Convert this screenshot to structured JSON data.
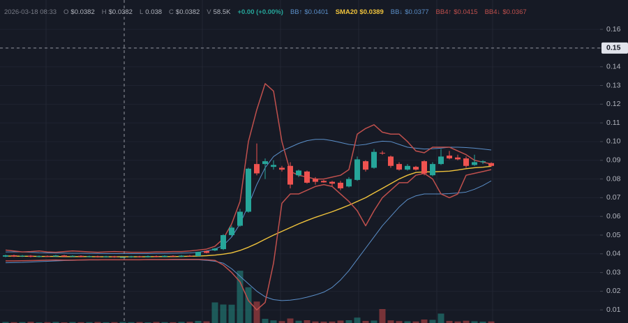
{
  "chart_data": {
    "type": "candlestick",
    "header": {
      "time": "2026-03-18 08:33",
      "ohlcv": [
        {
          "label": "O",
          "value": "$0.0382"
        },
        {
          "label": "H",
          "value": "$0.0382"
        },
        {
          "label": "L",
          "value": "0.038"
        },
        {
          "label": "C",
          "value": "$0.0382"
        },
        {
          "label": "V",
          "value": "58.5K"
        }
      ],
      "change": "+0.00 (+0.00%)"
    },
    "crosshair_price": 0.15,
    "ylim": [
      0.003,
      0.1757
    ],
    "yticks": [
      0.01,
      0.02,
      0.03,
      0.04,
      0.05,
      0.06,
      0.07,
      0.08,
      0.09,
      {
        "value": 0.1,
        "label": "0.10"
      },
      0.11,
      0.12,
      0.13,
      0.14,
      0.15,
      0.16
    ],
    "grid": true,
    "up_color": "#26a69a",
    "down_color": "#ef5350",
    "candles": {
      "open": [
        0.0385,
        0.0392,
        0.0386,
        0.039,
        0.0384,
        0.0388,
        0.0386,
        0.0391,
        0.0385,
        0.0389,
        0.0384,
        0.0387,
        0.0383,
        0.0386,
        0.0382,
        0.0382,
        0.0386,
        0.0383,
        0.0388,
        0.0384,
        0.0389,
        0.0385,
        0.039,
        0.0388,
        0.0415,
        0.0418,
        0.0425,
        0.05,
        0.055,
        0.0625,
        0.088,
        0.088,
        0.0865,
        0.086,
        0.087,
        0.082,
        0.084,
        0.08,
        0.079,
        0.0785,
        0.078,
        0.076,
        0.0795,
        0.0895,
        0.086,
        0.094,
        0.092,
        0.088,
        0.085,
        0.0865,
        0.0895,
        0.082,
        0.088,
        0.0925,
        0.0915,
        0.091,
        0.0875,
        0.089,
        0.0885
      ],
      "high": [
        0.0395,
        0.0395,
        0.0393,
        0.0393,
        0.0391,
        0.0391,
        0.0394,
        0.0394,
        0.0392,
        0.0392,
        0.039,
        0.039,
        0.0389,
        0.0389,
        0.0382,
        0.0389,
        0.0389,
        0.0391,
        0.0391,
        0.0392,
        0.0392,
        0.0393,
        0.0393,
        0.0412,
        0.0418,
        0.0432,
        0.0505,
        0.055,
        0.064,
        0.086,
        0.099,
        0.091,
        0.09,
        0.087,
        0.089,
        0.085,
        0.0845,
        0.081,
        0.0795,
        0.079,
        0.079,
        0.081,
        0.092,
        0.09,
        0.096,
        0.095,
        0.0925,
        0.089,
        0.088,
        0.087,
        0.09,
        0.089,
        0.096,
        0.095,
        0.093,
        0.092,
        0.093,
        0.09,
        0.089
      ],
      "low": [
        0.0382,
        0.0383,
        0.0383,
        0.0381,
        0.0381,
        0.0383,
        0.0383,
        0.0382,
        0.0382,
        0.0381,
        0.0381,
        0.038,
        0.038,
        0.0379,
        0.038,
        0.0379,
        0.038,
        0.038,
        0.0381,
        0.0381,
        0.0382,
        0.0382,
        0.0385,
        0.0386,
        0.0402,
        0.0414,
        0.042,
        0.0492,
        0.0545,
        0.062,
        0.082,
        0.08,
        0.085,
        0.084,
        0.075,
        0.081,
        0.0775,
        0.077,
        0.078,
        0.076,
        0.074,
        0.0755,
        0.079,
        0.084,
        0.0855,
        0.093,
        0.086,
        0.0845,
        0.0845,
        0.0845,
        0.082,
        0.0815,
        0.0875,
        0.0905,
        0.09,
        0.086,
        0.087,
        0.088,
        0.0865
      ],
      "close": [
        0.0392,
        0.0386,
        0.039,
        0.0384,
        0.0388,
        0.0386,
        0.0391,
        0.0385,
        0.0389,
        0.0384,
        0.0387,
        0.0383,
        0.0386,
        0.0382,
        0.0382,
        0.0386,
        0.0383,
        0.0388,
        0.0384,
        0.0389,
        0.0385,
        0.039,
        0.0388,
        0.041,
        0.0405,
        0.0428,
        0.05,
        0.054,
        0.0625,
        0.0855,
        0.083,
        0.0895,
        0.0875,
        0.085,
        0.077,
        0.0845,
        0.078,
        0.0785,
        0.0782,
        0.0775,
        0.075,
        0.08,
        0.0905,
        0.085,
        0.0945,
        0.0938,
        0.087,
        0.085,
        0.087,
        0.085,
        0.083,
        0.088,
        0.092,
        0.091,
        0.0905,
        0.087,
        0.089,
        0.0895,
        0.087
      ],
      "volume": [
        62,
        48,
        55,
        70,
        44,
        51,
        66,
        39,
        58,
        47,
        53,
        61,
        45,
        50,
        58.5,
        49,
        57,
        42,
        63,
        52,
        46,
        68,
        71,
        120,
        95,
        1180,
        1060,
        1050,
        3000,
        2050,
        1230,
        240,
        150,
        110,
        260,
        130,
        160,
        90,
        80,
        85,
        140,
        160,
        310,
        120,
        140,
        800,
        150,
        110,
        100,
        90,
        200,
        180,
        540,
        120,
        90,
        130,
        100,
        80,
        90
      ]
    },
    "series": [
      {
        "name": "BB↑",
        "last_label": "$0.0401",
        "color": "#5b8fc9",
        "width": 1,
        "values": [
          0.041,
          0.041,
          0.041,
          0.0408,
          0.0406,
          0.0405,
          0.0404,
          0.0404,
          0.0403,
          0.0403,
          0.0402,
          0.0402,
          0.0401,
          0.0401,
          0.0401,
          0.0401,
          0.0401,
          0.0401,
          0.0402,
          0.0402,
          0.0403,
          0.0404,
          0.0405,
          0.0408,
          0.0415,
          0.0425,
          0.0445,
          0.049,
          0.056,
          0.066,
          0.077,
          0.086,
          0.092,
          0.095,
          0.097,
          0.099,
          0.1005,
          0.1012,
          0.1012,
          0.1005,
          0.0995,
          0.0985,
          0.098,
          0.0985,
          0.0995,
          0.1002,
          0.1,
          0.0985,
          0.097,
          0.0965,
          0.096,
          0.0962,
          0.0965,
          0.097,
          0.097,
          0.0968,
          0.0965,
          0.096,
          0.0955
        ]
      },
      {
        "name": "SMA20",
        "last_label": "$0.0389",
        "color": "#f0c33c",
        "width": 1.4,
        "values": [
          0.0388,
          0.0388,
          0.0387,
          0.0387,
          0.0386,
          0.0386,
          0.0386,
          0.0385,
          0.0385,
          0.0385,
          0.0385,
          0.0384,
          0.0384,
          0.0384,
          0.0384,
          0.0384,
          0.0384,
          0.0384,
          0.0385,
          0.0385,
          0.0385,
          0.0386,
          0.0387,
          0.0388,
          0.039,
          0.0393,
          0.0398,
          0.0405,
          0.0418,
          0.0435,
          0.0455,
          0.0478,
          0.05,
          0.052,
          0.054,
          0.056,
          0.0578,
          0.0595,
          0.061,
          0.0625,
          0.0642,
          0.066,
          0.068,
          0.07,
          0.0725,
          0.075,
          0.0775,
          0.08,
          0.082,
          0.0835,
          0.0838,
          0.0838,
          0.084,
          0.0842,
          0.0848,
          0.0855,
          0.086,
          0.0863,
          0.0868
        ]
      },
      {
        "name": "BB↓",
        "last_label": "$0.0377",
        "color": "#5b8fc9",
        "width": 1,
        "values": [
          0.0352,
          0.0353,
          0.0354,
          0.0356,
          0.0358,
          0.036,
          0.0362,
          0.0364,
          0.0365,
          0.0366,
          0.0367,
          0.0367,
          0.0368,
          0.0368,
          0.0368,
          0.0368,
          0.0368,
          0.0368,
          0.0368,
          0.0368,
          0.0368,
          0.0368,
          0.0368,
          0.0368,
          0.0365,
          0.036,
          0.035,
          0.032,
          0.028,
          0.024,
          0.02,
          0.017,
          0.0155,
          0.015,
          0.0152,
          0.0158,
          0.0168,
          0.018,
          0.0195,
          0.022,
          0.026,
          0.031,
          0.037,
          0.043,
          0.049,
          0.055,
          0.06,
          0.065,
          0.069,
          0.071,
          0.072,
          0.072,
          0.072,
          0.0722,
          0.0725,
          0.073,
          0.0745,
          0.0765,
          0.079
        ]
      },
      {
        "name": "BB4↑",
        "last_label": "$0.0415",
        "color": "#c0504d",
        "width": 1.5,
        "values": [
          0.042,
          0.0415,
          0.041,
          0.0412,
          0.0415,
          0.041,
          0.0408,
          0.0412,
          0.0415,
          0.0413,
          0.041,
          0.0408,
          0.041,
          0.0412,
          0.041,
          0.0408,
          0.0408,
          0.0408,
          0.041,
          0.041,
          0.0412,
          0.0412,
          0.0415,
          0.042,
          0.0425,
          0.044,
          0.048,
          0.056,
          0.068,
          0.1,
          0.117,
          0.131,
          0.127,
          0.1,
          0.084,
          0.082,
          0.081,
          0.08,
          0.08,
          0.081,
          0.082,
          0.085,
          0.104,
          0.107,
          0.109,
          0.105,
          0.104,
          0.104,
          0.1,
          0.095,
          0.094,
          0.097,
          0.097,
          0.097,
          0.095,
          0.093,
          0.09,
          0.089,
          0.088
        ]
      },
      {
        "name": "BB4↓",
        "last_label": "$0.0367",
        "color": "#c0504d",
        "width": 1.5,
        "values": [
          0.0362,
          0.0362,
          0.0363,
          0.0364,
          0.0365,
          0.0366,
          0.0367,
          0.0366,
          0.0366,
          0.0367,
          0.0368,
          0.0368,
          0.0368,
          0.0368,
          0.0368,
          0.0368,
          0.0368,
          0.0369,
          0.0369,
          0.0369,
          0.037,
          0.037,
          0.037,
          0.037,
          0.0368,
          0.0365,
          0.034,
          0.03,
          0.025,
          0.015,
          0.01,
          0.014,
          0.035,
          0.067,
          0.072,
          0.072,
          0.074,
          0.076,
          0.077,
          0.076,
          0.072,
          0.068,
          0.063,
          0.055,
          0.063,
          0.07,
          0.074,
          0.078,
          0.078,
          0.082,
          0.083,
          0.08,
          0.072,
          0.07,
          0.072,
          0.082,
          0.083,
          0.084,
          0.085
        ]
      }
    ]
  }
}
